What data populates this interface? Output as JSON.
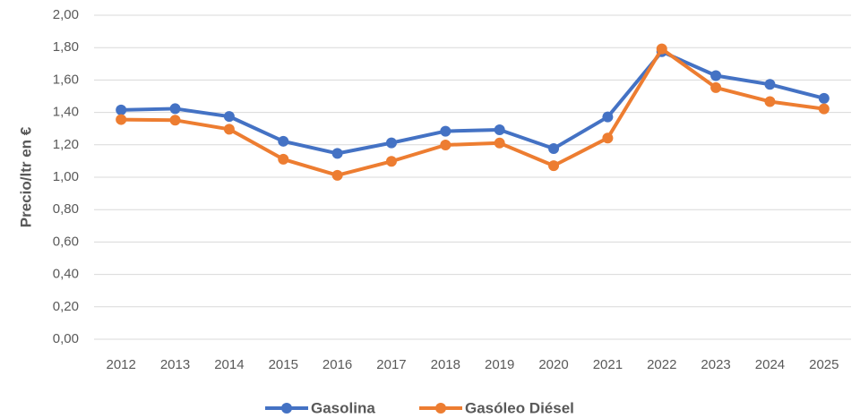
{
  "chart_data": {
    "type": "line",
    "ylabel": "Precio/ltr en €",
    "categories": [
      "2012",
      "2013",
      "2014",
      "2015",
      "2016",
      "2017",
      "2018",
      "2019",
      "2020",
      "2021",
      "2022",
      "2023",
      "2024",
      "2025"
    ],
    "series": [
      {
        "name": "Gasolina",
        "color": "#4472c4",
        "values": [
          1.415,
          1.423,
          1.375,
          1.222,
          1.147,
          1.212,
          1.284,
          1.293,
          1.177,
          1.372,
          1.775,
          1.627,
          1.573,
          1.487
        ]
      },
      {
        "name": "Gasóleo Diésel",
        "color": "#ed7d31",
        "values": [
          1.356,
          1.352,
          1.296,
          1.111,
          1.012,
          1.098,
          1.199,
          1.211,
          1.071,
          1.242,
          1.792,
          1.553,
          1.467,
          1.422
        ]
      }
    ],
    "ylim": [
      0,
      2
    ],
    "yticks": [
      {
        "value": 0,
        "label": "0,00"
      },
      {
        "value": 0.2,
        "label": "0,20"
      },
      {
        "value": 0.4,
        "label": "0,40"
      },
      {
        "value": 0.6,
        "label": "0,60"
      },
      {
        "value": 0.8,
        "label": "0,80"
      },
      {
        "value": 1,
        "label": "1,00"
      },
      {
        "value": 1.2,
        "label": "1,20"
      },
      {
        "value": 1.4,
        "label": "1,40"
      },
      {
        "value": 1.6,
        "label": "1,60"
      },
      {
        "value": 1.8,
        "label": "1,80"
      },
      {
        "value": 2,
        "label": "2,00"
      }
    ],
    "grid": true,
    "legend": "bottom"
  }
}
